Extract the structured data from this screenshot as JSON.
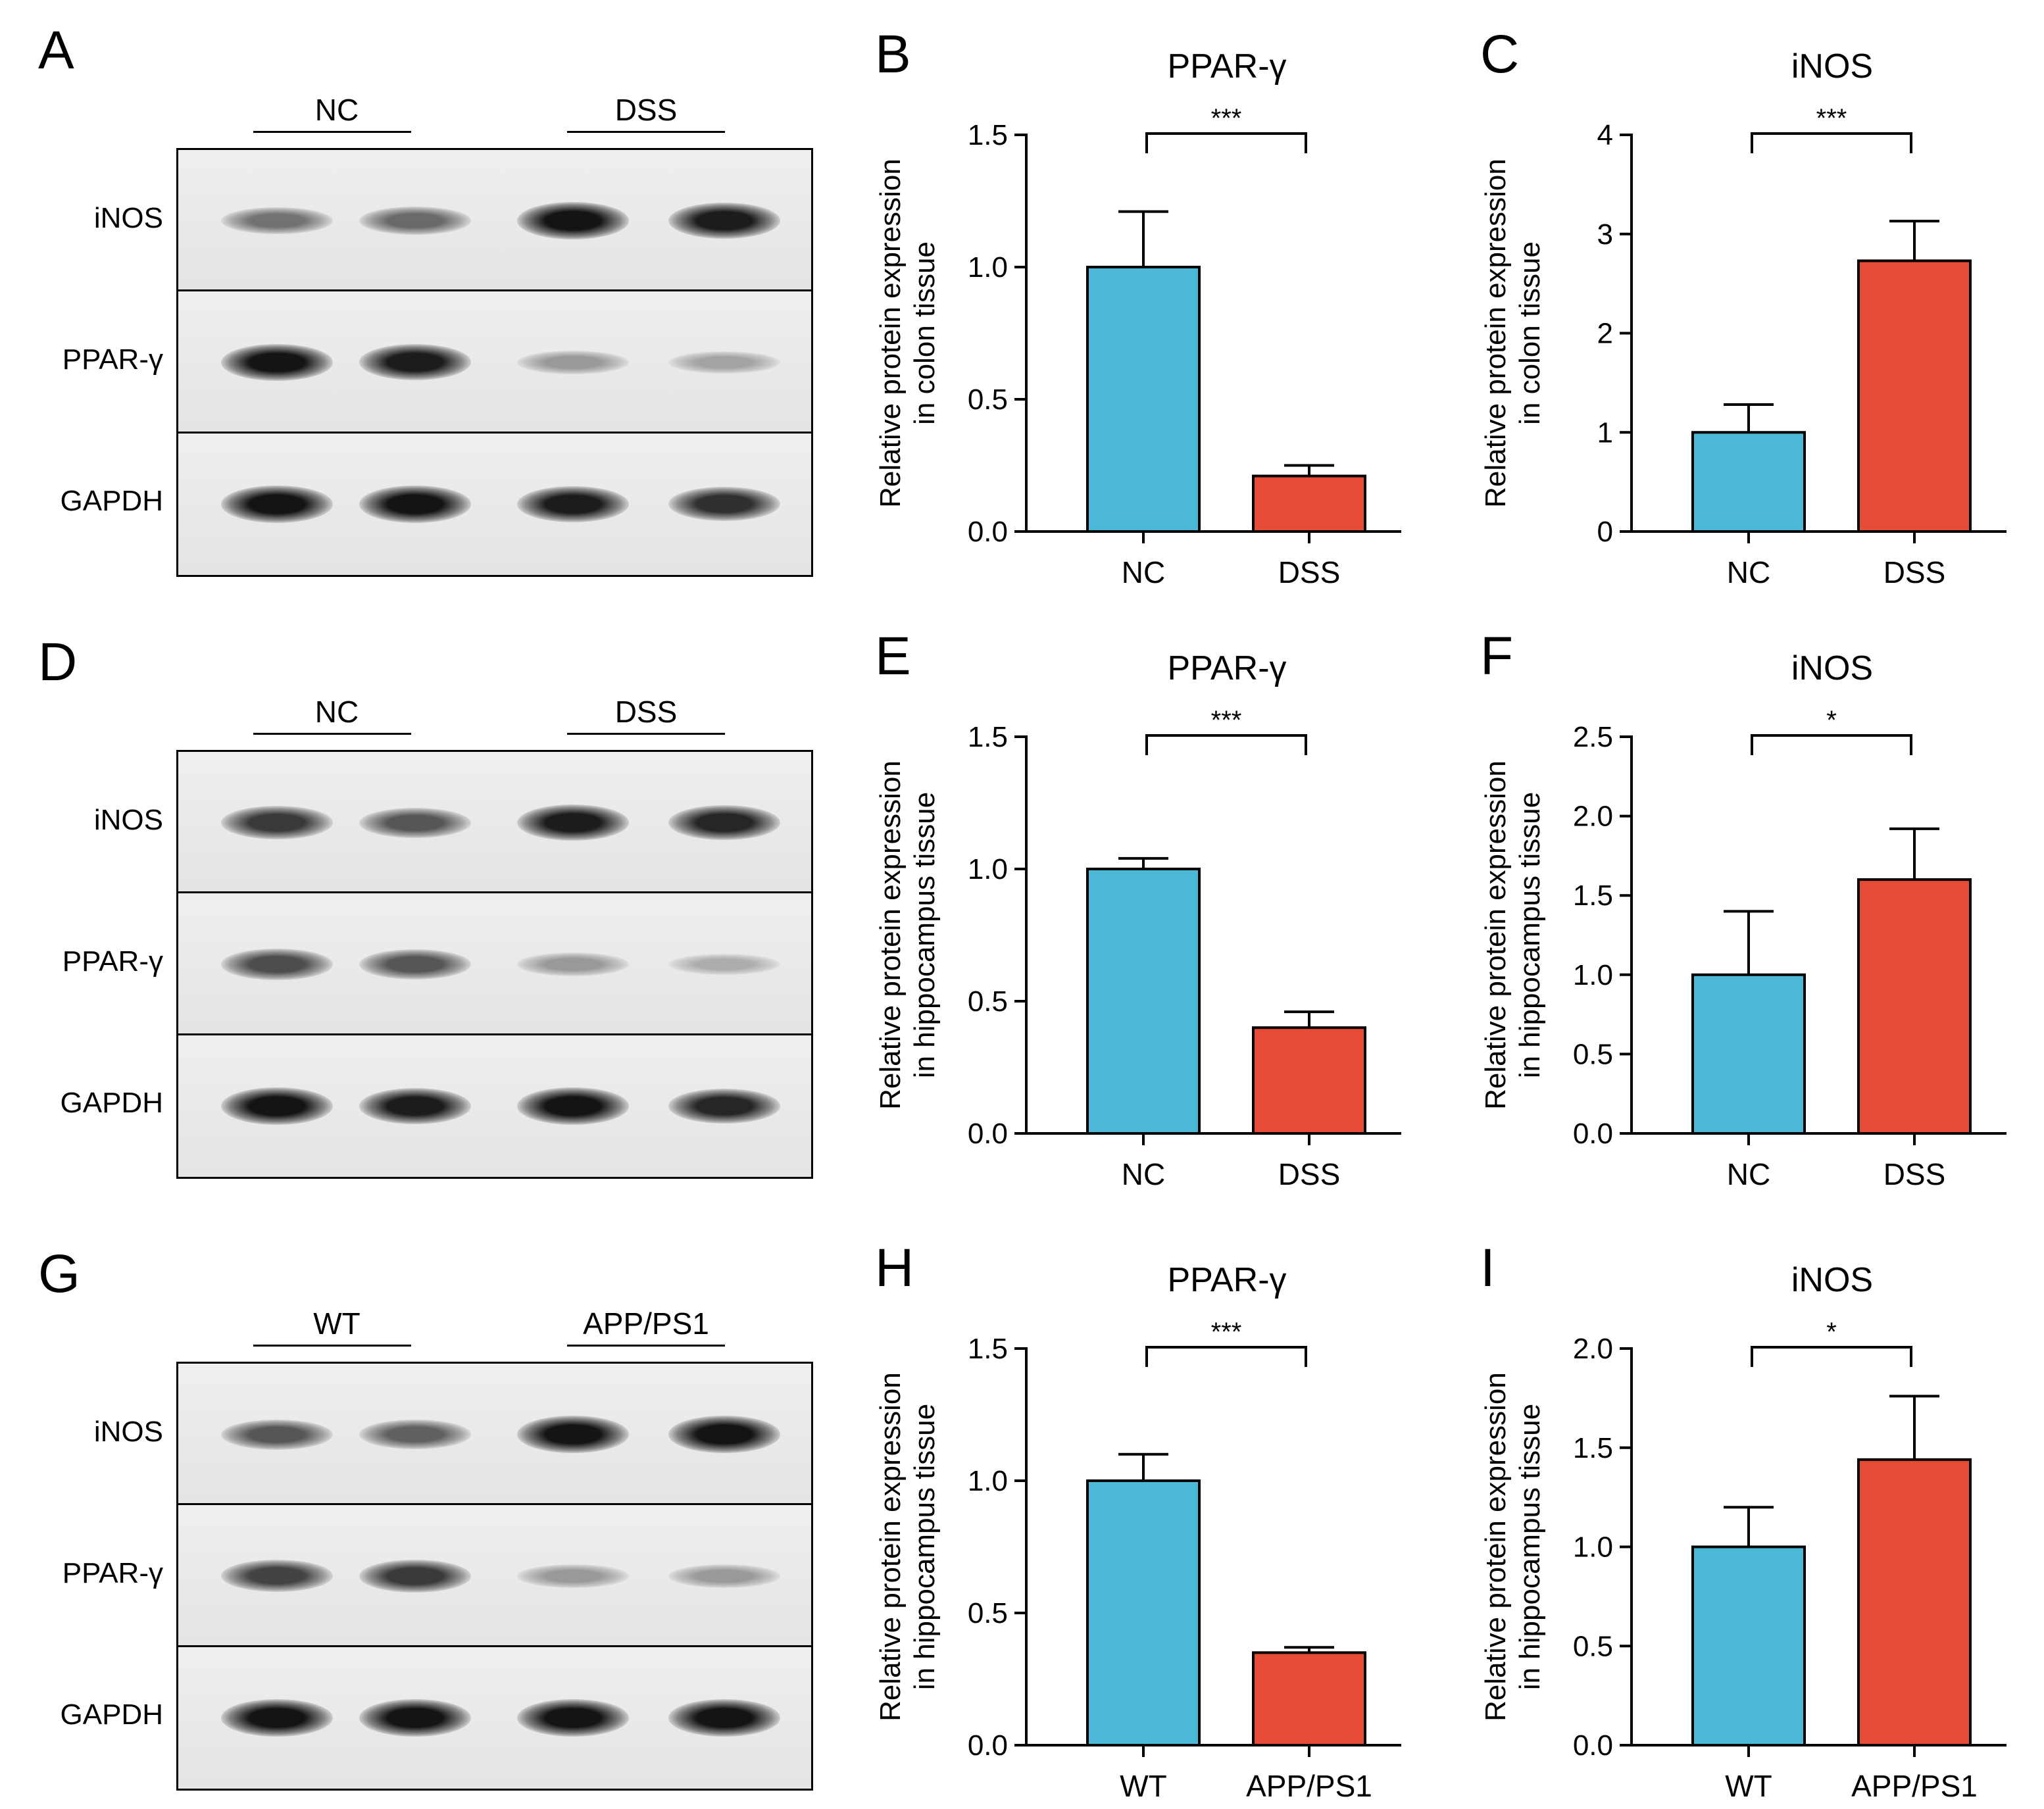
{
  "colors": {
    "group1": "#4ab8d6",
    "group2": "#e64b35",
    "axis": "#000000",
    "band": "#1a1a1a"
  },
  "blots": [
    {
      "letter": "A",
      "groups": [
        "NC",
        "DSS"
      ],
      "rows": [
        {
          "label": "iNOS",
          "intensities": [
            0.45,
            0.5,
            0.95,
            0.9
          ]
        },
        {
          "label": "PPAR-γ",
          "intensities": [
            0.95,
            0.9,
            0.25,
            0.2
          ]
        },
        {
          "label": "GAPDH",
          "intensities": [
            0.95,
            0.95,
            0.9,
            0.8
          ]
        }
      ]
    },
    {
      "letter": "D",
      "groups": [
        "NC",
        "DSS"
      ],
      "rows": [
        {
          "label": "iNOS",
          "intensities": [
            0.75,
            0.6,
            0.9,
            0.85
          ]
        },
        {
          "label": "PPAR-γ",
          "intensities": [
            0.65,
            0.6,
            0.25,
            0.15
          ]
        },
        {
          "label": "GAPDH",
          "intensities": [
            0.98,
            0.9,
            0.95,
            0.85
          ]
        }
      ]
    },
    {
      "letter": "G",
      "groups": [
        "WT",
        "APP/PS1"
      ],
      "rows": [
        {
          "label": "iNOS",
          "intensities": [
            0.6,
            0.55,
            0.95,
            0.95
          ]
        },
        {
          "label": "PPAR-γ",
          "intensities": [
            0.7,
            0.75,
            0.25,
            0.25
          ]
        },
        {
          "label": "GAPDH",
          "intensities": [
            0.98,
            0.98,
            0.95,
            0.95
          ]
        }
      ]
    }
  ],
  "chart_data": [
    {
      "letter": "B",
      "type": "bar",
      "title": "PPAR-γ",
      "categories": [
        "NC",
        "DSS"
      ],
      "values": [
        1.0,
        0.21
      ],
      "errors": [
        0.21,
        0.04
      ],
      "ylabel_line1": "Relative protein expression",
      "ylabel_line2": "in colon tissue",
      "ylim": [
        0,
        1.5
      ],
      "yticks": [
        "0.0",
        "0.5",
        "1.0",
        "1.5"
      ],
      "sig": "***"
    },
    {
      "letter": "C",
      "type": "bar",
      "title": "iNOS",
      "categories": [
        "NC",
        "DSS"
      ],
      "values": [
        1.0,
        2.73
      ],
      "errors": [
        0.28,
        0.4
      ],
      "ylabel_line1": "Relative protein expression",
      "ylabel_line2": "in colon tissue",
      "ylim": [
        0,
        4
      ],
      "yticks": [
        "0",
        "1",
        "2",
        "3",
        "4"
      ],
      "sig": "***"
    },
    {
      "letter": "E",
      "type": "bar",
      "title": "PPAR-γ",
      "categories": [
        "NC",
        "DSS"
      ],
      "values": [
        1.0,
        0.4
      ],
      "errors": [
        0.04,
        0.06
      ],
      "ylabel_line1": "Relative protein expression",
      "ylabel_line2": "in hippocampus tissue",
      "ylim": [
        0,
        1.5
      ],
      "yticks": [
        "0.0",
        "0.5",
        "1.0",
        "1.5"
      ],
      "sig": "***"
    },
    {
      "letter": "F",
      "type": "bar",
      "title": "iNOS",
      "categories": [
        "NC",
        "DSS"
      ],
      "values": [
        1.0,
        1.6
      ],
      "errors": [
        0.4,
        0.32
      ],
      "ylabel_line1": "Relative protein expression",
      "ylabel_line2": "in hippocampus tissue",
      "ylim": [
        0,
        2.5
      ],
      "yticks": [
        "0.0",
        "0.5",
        "1.0",
        "1.5",
        "2.0",
        "2.5"
      ],
      "sig": "*"
    },
    {
      "letter": "H",
      "type": "bar",
      "title": "PPAR-γ",
      "categories": [
        "WT",
        "APP/PS1"
      ],
      "values": [
        1.0,
        0.35
      ],
      "errors": [
        0.1,
        0.02
      ],
      "ylabel_line1": "Relative protein expression",
      "ylabel_line2": "in hippocampus tissue",
      "ylim": [
        0,
        1.5
      ],
      "yticks": [
        "0.0",
        "0.5",
        "1.0",
        "1.5"
      ],
      "sig": "***"
    },
    {
      "letter": "I",
      "type": "bar",
      "title": "iNOS",
      "categories": [
        "WT",
        "APP/PS1"
      ],
      "values": [
        1.0,
        1.44
      ],
      "errors": [
        0.2,
        0.32
      ],
      "ylabel_line1": "Relative protein expression",
      "ylabel_line2": "in hippocampus tissue",
      "ylim": [
        0,
        2.0
      ],
      "yticks": [
        "0.0",
        "0.5",
        "1.0",
        "1.5",
        "2.0"
      ],
      "sig": "*"
    }
  ]
}
